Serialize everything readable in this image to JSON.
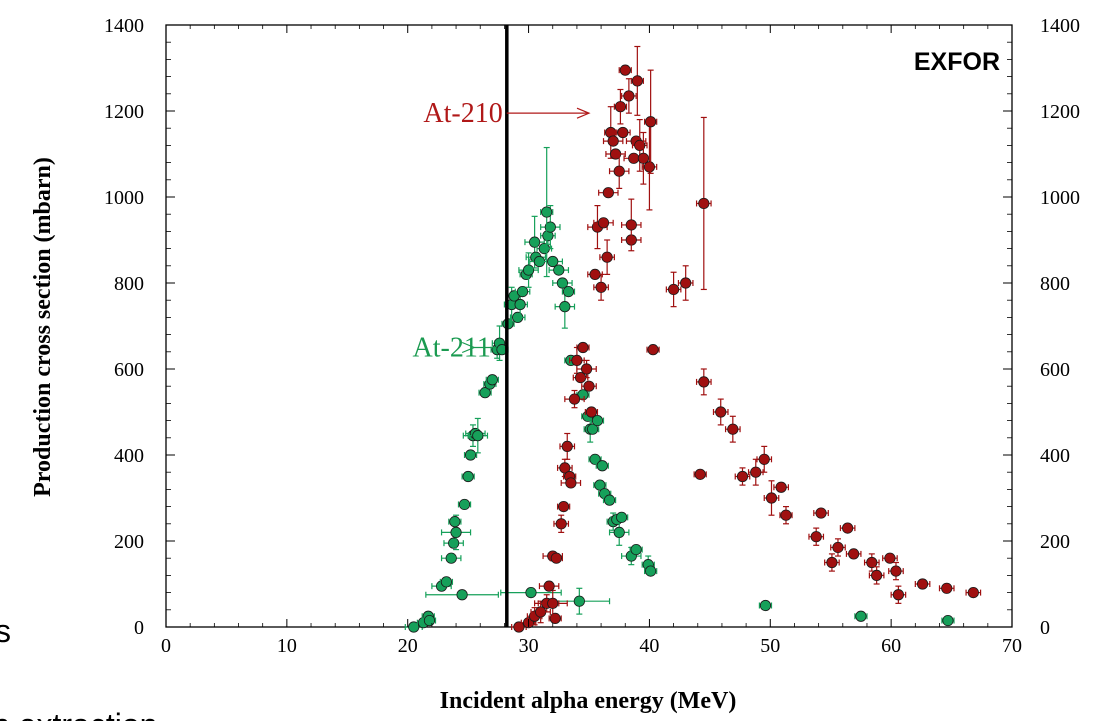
{
  "chart_data": {
    "type": "scatter",
    "xlabel": "Incident alpha energy (MeV)",
    "ylabel": "Production cross section (mbarn)",
    "xlim": [
      0,
      70
    ],
    "ylim": [
      0,
      1400
    ],
    "x_ticks": [
      "0",
      "10",
      "20",
      "30",
      "40",
      "50",
      "60",
      "70"
    ],
    "y_ticks": [
      "0",
      "200",
      "400",
      "600",
      "800",
      "1000",
      "1200",
      "1400"
    ],
    "annotation": "EXFOR",
    "vertical_line_x": 28.2,
    "grid": false,
    "edge_text_left": "s",
    "edge_text_bottom": "n extraction",
    "series": [
      {
        "name": "At-211",
        "color": "#16a05a",
        "label_color": "#1a9a50",
        "label_x": 20.4,
        "label_y": 650,
        "arrow_to_x": 25.5,
        "arrow_to_y": 650,
        "points": [
          [
            20.5,
            0,
            0.7,
            0
          ],
          [
            21.3,
            10,
            0.5,
            0
          ],
          [
            21.7,
            25,
            0.5,
            0
          ],
          [
            21.8,
            15,
            0.5,
            0
          ],
          [
            22.8,
            95,
            0.8,
            0
          ],
          [
            23.2,
            105,
            0.5,
            0
          ],
          [
            23.6,
            160,
            0.8,
            0
          ],
          [
            23.8,
            195,
            0.8,
            0
          ],
          [
            24.0,
            220,
            1.2,
            40
          ],
          [
            23.9,
            245,
            0.5,
            0
          ],
          [
            24.5,
            75,
            3.0,
            0
          ],
          [
            24.7,
            285,
            0.5,
            0
          ],
          [
            25.0,
            350,
            0.5,
            0
          ],
          [
            25.2,
            400,
            0.5,
            0
          ],
          [
            25.4,
            445,
            0.8,
            25
          ],
          [
            25.6,
            450,
            0.8,
            0
          ],
          [
            25.8,
            445,
            0.8,
            40
          ],
          [
            26.4,
            545,
            0.5,
            0
          ],
          [
            26.8,
            565,
            0.5,
            0
          ],
          [
            27.0,
            575,
            0.5,
            0
          ],
          [
            27.4,
            645,
            0.5,
            20
          ],
          [
            27.6,
            660,
            0.6,
            40
          ],
          [
            27.8,
            645,
            0.5,
            0
          ],
          [
            28.3,
            705,
            0.5,
            0
          ],
          [
            28.6,
            750,
            0.6,
            40
          ],
          [
            28.8,
            770,
            0.5,
            0
          ],
          [
            29.1,
            720,
            0.6,
            0
          ],
          [
            29.3,
            750,
            0.6,
            30
          ],
          [
            29.5,
            780,
            0.6,
            0
          ],
          [
            29.8,
            820,
            0.5,
            0
          ],
          [
            30.0,
            830,
            0.8,
            40
          ],
          [
            30.2,
            80,
            2.5,
            0
          ],
          [
            30.5,
            895,
            0.8,
            60
          ],
          [
            30.6,
            860,
            0.8,
            0
          ],
          [
            30.9,
            850,
            0.8,
            0
          ],
          [
            31.3,
            880,
            0.6,
            0
          ],
          [
            31.6,
            910,
            0.6,
            20
          ],
          [
            31.8,
            930,
            0.8,
            50
          ],
          [
            31.5,
            965,
            0.5,
            150
          ],
          [
            32.0,
            850,
            0.8,
            0
          ],
          [
            32.5,
            830,
            0.8,
            0
          ],
          [
            32.8,
            800,
            0.8,
            0
          ],
          [
            33.0,
            745,
            0.8,
            50
          ],
          [
            33.3,
            780,
            0.5,
            0
          ],
          [
            33.5,
            620,
            0.5,
            0
          ],
          [
            34.2,
            60,
            2.5,
            30
          ],
          [
            34.5,
            540,
            0.5,
            0
          ],
          [
            34.9,
            490,
            0.5,
            0
          ],
          [
            35.1,
            460,
            0.5,
            30
          ],
          [
            35.3,
            460,
            0.5,
            0
          ],
          [
            35.7,
            480,
            0.5,
            0
          ],
          [
            35.5,
            390,
            0.5,
            0
          ],
          [
            35.9,
            330,
            0.5,
            0
          ],
          [
            36.1,
            375,
            0.5,
            0
          ],
          [
            36.3,
            310,
            0.5,
            0
          ],
          [
            36.7,
            295,
            0.5,
            0
          ],
          [
            37.0,
            245,
            0.5,
            20
          ],
          [
            37.3,
            250,
            0.5,
            0
          ],
          [
            37.5,
            220,
            0.8,
            30
          ],
          [
            37.7,
            255,
            0.5,
            0
          ],
          [
            38.5,
            165,
            0.8,
            20
          ],
          [
            38.9,
            180,
            0.5,
            0
          ],
          [
            39.9,
            145,
            0.5,
            20
          ],
          [
            40.1,
            130,
            0.5,
            0
          ],
          [
            49.6,
            50,
            0.5,
            0
          ],
          [
            57.5,
            25,
            0.5,
            0
          ],
          [
            64.7,
            15,
            0.5,
            0
          ]
        ]
      },
      {
        "name": "At-210",
        "color": "#a01010",
        "label_color": "#b01818",
        "label_x": 21.3,
        "label_y": 1195,
        "arrow_to_x": 35.0,
        "arrow_to_y": 1195,
        "points": [
          [
            29.2,
            0,
            0.6,
            0
          ],
          [
            30.0,
            10,
            0.6,
            0
          ],
          [
            30.5,
            25,
            0.6,
            20
          ],
          [
            31.0,
            35,
            0.8,
            25
          ],
          [
            31.5,
            55,
            1.0,
            20
          ],
          [
            32.2,
            20,
            0.5,
            0
          ],
          [
            32.0,
            55,
            1.2,
            30
          ],
          [
            31.7,
            95,
            0.8,
            0
          ],
          [
            32.0,
            165,
            0.8,
            0
          ],
          [
            32.3,
            160,
            0.5,
            0
          ],
          [
            32.7,
            240,
            0.6,
            20
          ],
          [
            32.9,
            280,
            0.5,
            0
          ],
          [
            33.0,
            370,
            0.6,
            20
          ],
          [
            33.2,
            420,
            0.6,
            30
          ],
          [
            33.4,
            350,
            0.5,
            0
          ],
          [
            33.5,
            335,
            0.8,
            0
          ],
          [
            33.8,
            530,
            0.8,
            20
          ],
          [
            34.0,
            620,
            0.6,
            30
          ],
          [
            34.3,
            580,
            0.6,
            0
          ],
          [
            34.5,
            650,
            0.5,
            0
          ],
          [
            34.8,
            600,
            0.8,
            20
          ],
          [
            35.0,
            560,
            0.6,
            0
          ],
          [
            35.2,
            500,
            0.5,
            0
          ],
          [
            35.5,
            820,
            0.6,
            0
          ],
          [
            35.7,
            930,
            0.8,
            50
          ],
          [
            36.0,
            790,
            0.6,
            30
          ],
          [
            36.2,
            940,
            0.8,
            0
          ],
          [
            36.5,
            860,
            0.6,
            40
          ],
          [
            36.6,
            1010,
            0.8,
            0
          ],
          [
            36.8,
            1150,
            0.5,
            60
          ],
          [
            37.0,
            1130,
            0.8,
            0
          ],
          [
            37.2,
            1100,
            0.8,
            0
          ],
          [
            37.5,
            1060,
            0.8,
            40
          ],
          [
            37.6,
            1210,
            0.5,
            40
          ],
          [
            37.8,
            1150,
            0.6,
            0
          ],
          [
            38.0,
            1295,
            0.5,
            0
          ],
          [
            38.3,
            1235,
            0.6,
            40
          ],
          [
            38.5,
            900,
            0.8,
            0
          ],
          [
            38.7,
            1090,
            0.8,
            0
          ],
          [
            38.9,
            1130,
            0.8,
            0
          ],
          [
            39.0,
            1270,
            0.5,
            80
          ],
          [
            39.2,
            1120,
            0.6,
            60
          ],
          [
            39.5,
            1090,
            0.5,
            60
          ],
          [
            40.0,
            1070,
            0.6,
            100
          ],
          [
            40.1,
            1175,
            0.5,
            120
          ],
          [
            38.5,
            935,
            0.8,
            60
          ],
          [
            40.3,
            645,
            0.5,
            0
          ],
          [
            42.0,
            785,
            0.6,
            40
          ],
          [
            43.0,
            800,
            0.6,
            40
          ],
          [
            44.2,
            355,
            0.5,
            0
          ],
          [
            44.5,
            570,
            0.6,
            30
          ],
          [
            44.5,
            985,
            0.6,
            200
          ],
          [
            45.9,
            500,
            0.6,
            30
          ],
          [
            46.9,
            460,
            0.6,
            30
          ],
          [
            47.7,
            350,
            0.6,
            20
          ],
          [
            48.8,
            360,
            0.6,
            30
          ],
          [
            49.5,
            390,
            0.6,
            30
          ],
          [
            50.1,
            300,
            0.6,
            40
          ],
          [
            50.9,
            325,
            0.6,
            0
          ],
          [
            51.3,
            260,
            0.5,
            20
          ],
          [
            53.8,
            210,
            0.6,
            20
          ],
          [
            54.2,
            265,
            0.6,
            0
          ],
          [
            55.1,
            150,
            0.6,
            20
          ],
          [
            55.6,
            185,
            0.6,
            20
          ],
          [
            56.4,
            230,
            0.6,
            0
          ],
          [
            56.9,
            170,
            0.6,
            0
          ],
          [
            58.4,
            150,
            0.6,
            20
          ],
          [
            58.8,
            120,
            0.6,
            20
          ],
          [
            59.9,
            160,
            0.6,
            0
          ],
          [
            60.4,
            130,
            0.6,
            20
          ],
          [
            60.6,
            75,
            0.6,
            20
          ],
          [
            62.6,
            100,
            0.6,
            0
          ],
          [
            64.6,
            90,
            0.6,
            0
          ],
          [
            66.8,
            80,
            0.6,
            0
          ]
        ]
      }
    ]
  }
}
